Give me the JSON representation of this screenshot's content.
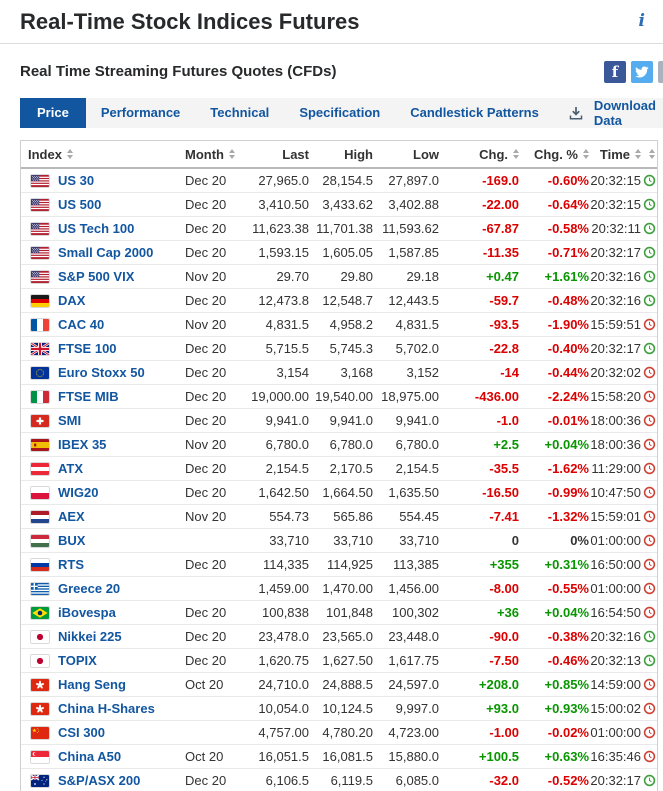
{
  "header": {
    "title": "Real-Time Stock Indices Futures",
    "info_icon": "i",
    "section_title": "Real Time Streaming Futures Quotes (CFDs)",
    "social": [
      {
        "icon": "facebook-icon",
        "color": "#3B5998"
      },
      {
        "icon": "twitter-icon",
        "color": "#55ACEE"
      },
      {
        "icon": "email-icon",
        "color": "#AAB2BD"
      }
    ]
  },
  "toolbar": {
    "tabs": [
      {
        "label": "Price",
        "active": true
      },
      {
        "label": "Performance",
        "active": false
      },
      {
        "label": "Technical",
        "active": false
      },
      {
        "label": "Specification",
        "active": false
      },
      {
        "label": "Candlestick Patterns",
        "active": false
      }
    ],
    "download_label": "Download Data"
  },
  "colors": {
    "accent_blue": "#1256A0",
    "positive": "#089600",
    "negative": "#DC0000",
    "neutral": "#333333",
    "clock_open": "#3C9E3C",
    "clock_closed": "#CB4335"
  },
  "table": {
    "columns": [
      {
        "label": "Index",
        "sortable": true,
        "align": "left"
      },
      {
        "label": "Month",
        "sortable": true,
        "align": "left"
      },
      {
        "label": "Last",
        "sortable": false,
        "align": "right"
      },
      {
        "label": "High",
        "sortable": false,
        "align": "right"
      },
      {
        "label": "Low",
        "sortable": false,
        "align": "right"
      },
      {
        "label": "Chg.",
        "sortable": true,
        "align": "right"
      },
      {
        "label": "Chg. %",
        "sortable": true,
        "align": "right"
      },
      {
        "label": "Time",
        "sortable": true,
        "align": "right"
      },
      {
        "label": "",
        "sortable": true,
        "align": "center"
      }
    ],
    "rows": [
      {
        "flag": "us",
        "index": "US 30",
        "month": "Dec 20",
        "last": "27,965.0",
        "high": "28,154.5",
        "low": "27,897.0",
        "chg": "-169.0",
        "chg_pct": "-0.60%",
        "time": "20:32:15",
        "direction": "down",
        "clock": "open"
      },
      {
        "flag": "us",
        "index": "US 500",
        "month": "Dec 20",
        "last": "3,410.50",
        "high": "3,433.62",
        "low": "3,402.88",
        "chg": "-22.00",
        "chg_pct": "-0.64%",
        "time": "20:32:15",
        "direction": "down",
        "clock": "open"
      },
      {
        "flag": "us",
        "index": "US Tech 100",
        "month": "Dec 20",
        "last": "11,623.38",
        "high": "11,701.38",
        "low": "11,593.62",
        "chg": "-67.87",
        "chg_pct": "-0.58%",
        "time": "20:32:11",
        "direction": "down",
        "clock": "open"
      },
      {
        "flag": "us",
        "index": "Small Cap 2000",
        "month": "Dec 20",
        "last": "1,593.15",
        "high": "1,605.05",
        "low": "1,587.85",
        "chg": "-11.35",
        "chg_pct": "-0.71%",
        "time": "20:32:17",
        "direction": "down",
        "clock": "open"
      },
      {
        "flag": "us",
        "index": "S&P 500 VIX",
        "month": "Nov 20",
        "last": "29.70",
        "high": "29.80",
        "low": "29.18",
        "chg": "+0.47",
        "chg_pct": "+1.61%",
        "time": "20:32:16",
        "direction": "up",
        "clock": "open"
      },
      {
        "flag": "de",
        "index": "DAX",
        "month": "Dec 20",
        "last": "12,473.8",
        "high": "12,548.7",
        "low": "12,443.5",
        "chg": "-59.7",
        "chg_pct": "-0.48%",
        "time": "20:32:16",
        "direction": "down",
        "clock": "open"
      },
      {
        "flag": "fr",
        "index": "CAC 40",
        "month": "Nov 20",
        "last": "4,831.5",
        "high": "4,958.2",
        "low": "4,831.5",
        "chg": "-93.5",
        "chg_pct": "-1.90%",
        "time": "15:59:51",
        "direction": "down",
        "clock": "closed"
      },
      {
        "flag": "gb",
        "index": "FTSE 100",
        "month": "Dec 20",
        "last": "5,715.5",
        "high": "5,745.3",
        "low": "5,702.0",
        "chg": "-22.8",
        "chg_pct": "-0.40%",
        "time": "20:32:17",
        "direction": "down",
        "clock": "open"
      },
      {
        "flag": "eu",
        "index": "Euro Stoxx 50",
        "month": "Dec 20",
        "last": "3,154",
        "high": "3,168",
        "low": "3,152",
        "chg": "-14",
        "chg_pct": "-0.44%",
        "time": "20:32:02",
        "direction": "down",
        "clock": "closed"
      },
      {
        "flag": "it",
        "index": "FTSE MIB",
        "month": "Dec 20",
        "last": "19,000.00",
        "high": "19,540.00",
        "low": "18,975.00",
        "chg": "-436.00",
        "chg_pct": "-2.24%",
        "time": "15:58:20",
        "direction": "down",
        "clock": "closed"
      },
      {
        "flag": "ch",
        "index": "SMI",
        "month": "Dec 20",
        "last": "9,941.0",
        "high": "9,941.0",
        "low": "9,941.0",
        "chg": "-1.0",
        "chg_pct": "-0.01%",
        "time": "18:00:36",
        "direction": "down",
        "clock": "closed"
      },
      {
        "flag": "es",
        "index": "IBEX 35",
        "month": "Nov 20",
        "last": "6,780.0",
        "high": "6,780.0",
        "low": "6,780.0",
        "chg": "+2.5",
        "chg_pct": "+0.04%",
        "time": "18:00:36",
        "direction": "up",
        "clock": "closed"
      },
      {
        "flag": "at",
        "index": "ATX",
        "month": "Dec 20",
        "last": "2,154.5",
        "high": "2,170.5",
        "low": "2,154.5",
        "chg": "-35.5",
        "chg_pct": "-1.62%",
        "time": "11:29:00",
        "direction": "down",
        "clock": "closed"
      },
      {
        "flag": "pl",
        "index": "WIG20",
        "month": "Dec 20",
        "last": "1,642.50",
        "high": "1,664.50",
        "low": "1,635.50",
        "chg": "-16.50",
        "chg_pct": "-0.99%",
        "time": "10:47:50",
        "direction": "down",
        "clock": "closed"
      },
      {
        "flag": "nl",
        "index": "AEX",
        "month": "Nov 20",
        "last": "554.73",
        "high": "565.86",
        "low": "554.45",
        "chg": "-7.41",
        "chg_pct": "-1.32%",
        "time": "15:59:01",
        "direction": "down",
        "clock": "closed"
      },
      {
        "flag": "hu",
        "index": "BUX",
        "month": "",
        "last": "33,710",
        "high": "33,710",
        "low": "33,710",
        "chg": "0",
        "chg_pct": "0%",
        "time": "01:00:00",
        "direction": "flat",
        "clock": "closed"
      },
      {
        "flag": "ru",
        "index": "RTS",
        "month": "Dec 20",
        "last": "114,335",
        "high": "114,925",
        "low": "113,385",
        "chg": "+355",
        "chg_pct": "+0.31%",
        "time": "16:50:00",
        "direction": "up",
        "clock": "closed"
      },
      {
        "flag": "gr",
        "index": "Greece 20",
        "month": "",
        "last": "1,459.00",
        "high": "1,470.00",
        "low": "1,456.00",
        "chg": "-8.00",
        "chg_pct": "-0.55%",
        "time": "01:00:00",
        "direction": "down",
        "clock": "closed"
      },
      {
        "flag": "br",
        "index": "iBovespa",
        "month": "Dec 20",
        "last": "100,838",
        "high": "101,848",
        "low": "100,302",
        "chg": "+36",
        "chg_pct": "+0.04%",
        "time": "16:54:50",
        "direction": "up",
        "clock": "closed"
      },
      {
        "flag": "jp",
        "index": "Nikkei 225",
        "month": "Dec 20",
        "last": "23,478.0",
        "high": "23,565.0",
        "low": "23,448.0",
        "chg": "-90.0",
        "chg_pct": "-0.38%",
        "time": "20:32:16",
        "direction": "down",
        "clock": "open"
      },
      {
        "flag": "jp",
        "index": "TOPIX",
        "month": "Dec 20",
        "last": "1,620.75",
        "high": "1,627.50",
        "low": "1,617.75",
        "chg": "-7.50",
        "chg_pct": "-0.46%",
        "time": "20:32:13",
        "direction": "down",
        "clock": "open"
      },
      {
        "flag": "hk",
        "index": "Hang Seng",
        "month": "Oct 20",
        "last": "24,710.0",
        "high": "24,888.5",
        "low": "24,597.0",
        "chg": "+208.0",
        "chg_pct": "+0.85%",
        "time": "14:59:00",
        "direction": "up",
        "clock": "closed"
      },
      {
        "flag": "hk",
        "index": "China H-Shares",
        "month": "",
        "last": "10,054.0",
        "high": "10,124.5",
        "low": "9,997.0",
        "chg": "+93.0",
        "chg_pct": "+0.93%",
        "time": "15:00:02",
        "direction": "up",
        "clock": "closed"
      },
      {
        "flag": "cn",
        "index": "CSI 300",
        "month": "",
        "last": "4,757.00",
        "high": "4,780.20",
        "low": "4,723.00",
        "chg": "-1.00",
        "chg_pct": "-0.02%",
        "time": "01:00:00",
        "direction": "down",
        "clock": "closed"
      },
      {
        "flag": "sg",
        "index": "China A50",
        "month": "Oct 20",
        "last": "16,051.5",
        "high": "16,081.5",
        "low": "15,880.0",
        "chg": "+100.5",
        "chg_pct": "+0.63%",
        "time": "16:35:46",
        "direction": "up",
        "clock": "closed"
      },
      {
        "flag": "au",
        "index": "S&P/ASX 200",
        "month": "Dec 20",
        "last": "6,106.5",
        "high": "6,119.5",
        "low": "6,085.0",
        "chg": "-32.0",
        "chg_pct": "-0.52%",
        "time": "20:32:17",
        "direction": "down",
        "clock": "open"
      }
    ],
    "partial_row": {
      "clock": "open"
    }
  }
}
